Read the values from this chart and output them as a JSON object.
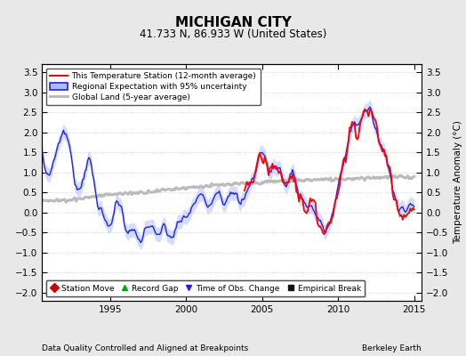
{
  "title": "MICHIGAN CITY",
  "subtitle": "41.733 N, 86.933 W (United States)",
  "xlabel_left": "Data Quality Controlled and Aligned at Breakpoints",
  "xlabel_right": "Berkeley Earth",
  "ylabel_right": "Temperature Anomaly (°C)",
  "xlim": [
    1990.5,
    2015.5
  ],
  "ylim": [
    -2.2,
    3.7
  ],
  "yticks": [
    -2,
    -1.5,
    -1,
    -0.5,
    0,
    0.5,
    1,
    1.5,
    2,
    2.5,
    3,
    3.5
  ],
  "xticks": [
    1995,
    2000,
    2005,
    2010,
    2015
  ],
  "background_color": "#e8e8e8",
  "plot_bg_color": "#ffffff",
  "regional_color": "#2222dd",
  "regional_fill_color": "#aabbff",
  "station_color": "#ff0000",
  "global_color": "#bbbbbb",
  "legend_items": [
    {
      "label": "This Temperature Station (12-month average)",
      "color": "#ff0000",
      "lw": 1.5
    },
    {
      "label": "Regional Expectation with 95% uncertainty",
      "color": "#2222dd",
      "lw": 1.5
    },
    {
      "label": "Global Land (5-year average)",
      "color": "#bbbbbb",
      "lw": 2.0
    }
  ],
  "markers": [
    {
      "label": "Station Move",
      "marker": "D",
      "color": "#cc0000"
    },
    {
      "label": "Record Gap",
      "marker": "^",
      "color": "#00aa00"
    },
    {
      "label": "Time of Obs. Change",
      "marker": "v",
      "color": "#2222dd"
    },
    {
      "label": "Empirical Break",
      "marker": "s",
      "color": "#111111"
    }
  ]
}
